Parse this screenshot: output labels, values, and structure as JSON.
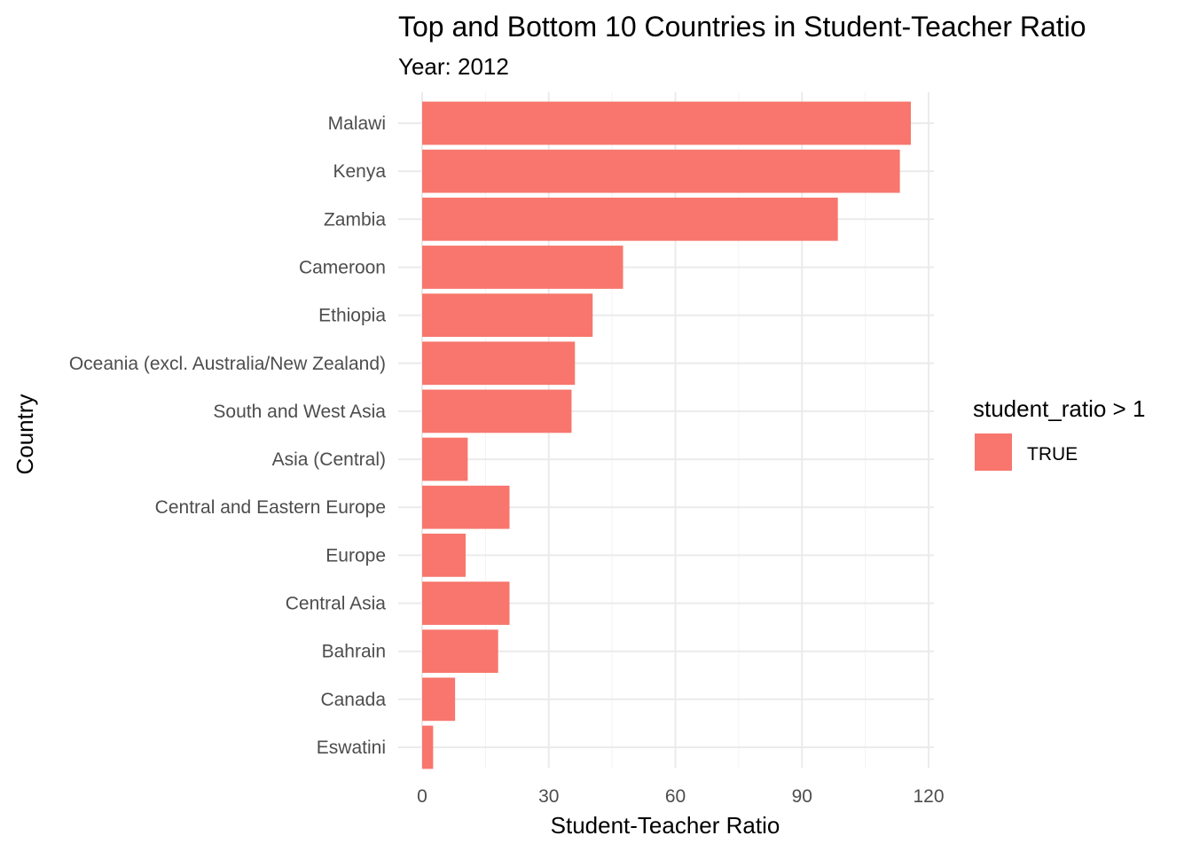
{
  "chart_data": {
    "type": "bar",
    "orientation": "horizontal",
    "title": "Top and Bottom 10 Countries in Student-Teacher Ratio",
    "subtitle": "Year: 2012",
    "xlabel": "Student-Teacher Ratio",
    "ylabel": "Country",
    "xlim": [
      0,
      122
    ],
    "x_ticks": [
      0,
      30,
      60,
      90,
      120
    ],
    "x_minor_ticks": [
      15,
      45,
      75,
      105
    ],
    "grid": true,
    "categories": [
      "Malawi",
      "Kenya",
      "Zambia",
      "Cameroon",
      "Ethiopia",
      "Oceania (excl. Australia/New Zealand)",
      "South and West Asia",
      "Asia (Central)",
      "Central and Eastern Europe",
      "Europe",
      "Central Asia",
      "Bahrain",
      "Canada",
      "Eswatini"
    ],
    "values": [
      115.8,
      113.2,
      98.5,
      47.6,
      40.4,
      36.2,
      35.4,
      10.8,
      20.7,
      10.3,
      20.7,
      18.0,
      7.8,
      2.6
    ],
    "bar_color": "#F8766D",
    "legend": {
      "title": "student_ratio > 1",
      "position": "right",
      "entries": [
        {
          "label": "TRUE",
          "color": "#F8766D"
        }
      ]
    }
  }
}
